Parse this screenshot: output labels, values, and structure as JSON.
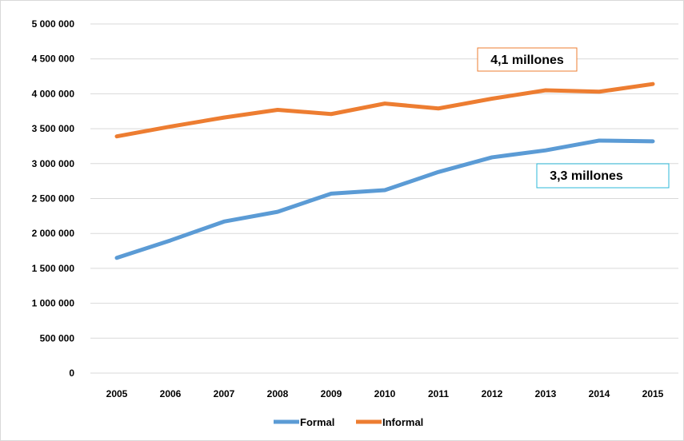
{
  "chart_data": {
    "type": "line",
    "x": [
      "2005",
      "2006",
      "2007",
      "2008",
      "2009",
      "2010",
      "2011",
      "2012",
      "2013",
      "2014",
      "2015"
    ],
    "series": [
      {
        "name": "Formal",
        "color": "#5b9bd5",
        "values": [
          1650000,
          1900000,
          2170000,
          2310000,
          2570000,
          2620000,
          2880000,
          3090000,
          3190000,
          3330000,
          3320000
        ]
      },
      {
        "name": "Informal",
        "color": "#ed7d31",
        "values": [
          3390000,
          3530000,
          3660000,
          3770000,
          3710000,
          3860000,
          3790000,
          3930000,
          4050000,
          4030000,
          4140000
        ]
      }
    ],
    "ylim": [
      0,
      5000000
    ],
    "yticks": [
      0,
      500000,
      1000000,
      1500000,
      2000000,
      2500000,
      3000000,
      3500000,
      4000000,
      4500000,
      5000000
    ],
    "ytick_labels": [
      "0",
      "500 000",
      "1 000 000",
      "1 500 000",
      "2 000 000",
      "2 500 000",
      "3 000 000",
      "3 500 000",
      "4 000 000",
      "4 500 000",
      "5 000 000"
    ],
    "grid": true,
    "legend_position": "bottom",
    "annotations": [
      {
        "text": "4,1 millones",
        "series": "Informal",
        "border_color": "#ed7d31"
      },
      {
        "text": "3,3 millones",
        "series": "Formal",
        "border_color": "#2eb8d8"
      }
    ]
  }
}
